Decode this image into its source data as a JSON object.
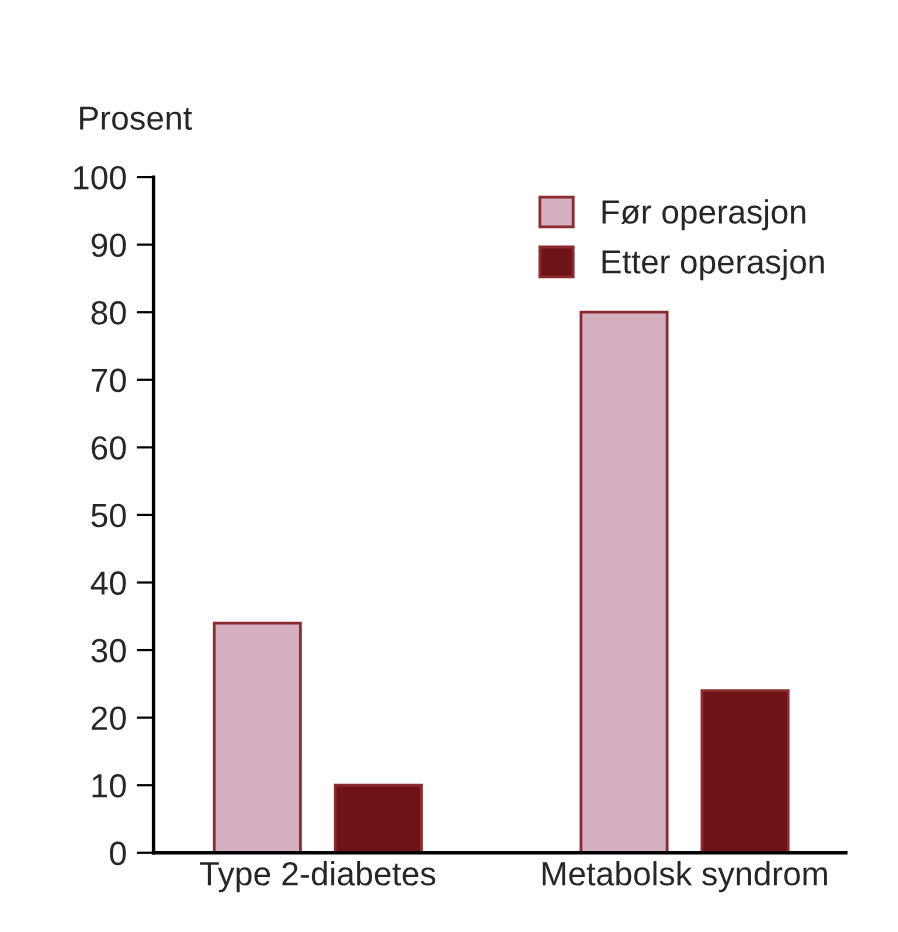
{
  "chart_data": {
    "type": "bar",
    "ylabel": "Prosent",
    "categories": [
      "Type 2-diabetes",
      "Metabolsk syndrom"
    ],
    "series": [
      {
        "name": "Før operasjon",
        "color": "#d3afc0",
        "values": [
          34,
          80
        ]
      },
      {
        "name": "Etter operasjon",
        "color": "#6e1416",
        "values": [
          10,
          24
        ]
      }
    ],
    "ylim": [
      0,
      100
    ],
    "yticks": [
      0,
      10,
      20,
      30,
      40,
      50,
      60,
      70,
      80,
      90,
      100
    ],
    "grid": false,
    "legend": "top right"
  }
}
